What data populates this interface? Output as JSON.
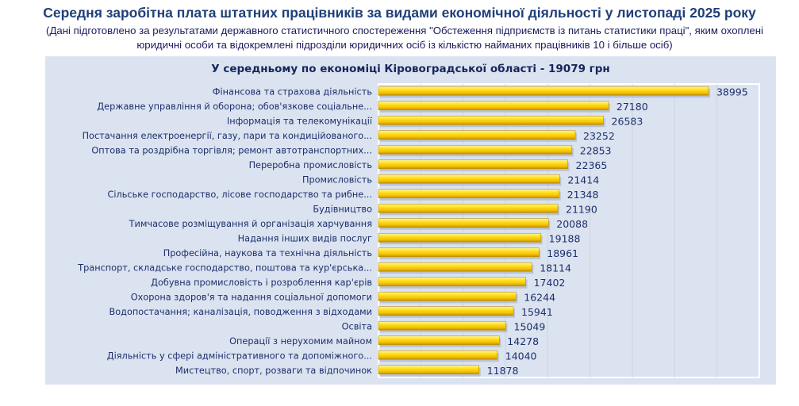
{
  "title": "Середня заробітна плата штатних працівників за видами економічної діяльності у листопаді 2025 року",
  "subtitle": "(Дані підготовлено за результатами державного статистичного спостереження \"Обстеження підприємств із питань статистики праці\", яким охоплені юридичні особи та відокремлені підрозділи юридичних осіб із кількістю найманих працівників 10 і більше осіб)",
  "chart_data": {
    "type": "bar",
    "orientation": "horizontal",
    "title": "У середньому по економіці Кіровоградської області - 19079 грн",
    "categories": [
      "Фінансова та страхова діяльність",
      "Державне управління й оборона; обов'язкове соціальне...",
      "Інформація та телекомунікації",
      "Постачання електроенергії, газу, пари та кондиційованого...",
      "Оптова та роздрібна торгівля; ремонт автотранспортних...",
      "Переробна промисловість",
      "Промисловість",
      "Сільське господарство, лісове господарство та рибне...",
      "Будівництво",
      "Тимчасове розміщування й організація харчування",
      "Надання інших видів послуг",
      "Професійна, наукова та технічна діяльність",
      "Транспорт, складське господарство, поштова та кур'єрська...",
      "Добувна промисловість і розроблення кар'єрів",
      "Охорона здоров'я та надання соціальної допомоги",
      "Водопостачання; каналізація, поводження з відходами",
      "Освіта",
      "Операції з нерухомим майном",
      "Діяльність у сфері адміністративного та допоміжного...",
      "Мистецтво, спорт, розваги та відпочинок"
    ],
    "values": [
      38995,
      27180,
      26583,
      23252,
      22853,
      22365,
      21414,
      21348,
      21190,
      20088,
      19188,
      18961,
      18114,
      17402,
      16244,
      15941,
      15049,
      14278,
      14040,
      11878
    ],
    "xlim": [
      0,
      45000
    ],
    "grid": true,
    "bar_color": "#f5c400"
  }
}
